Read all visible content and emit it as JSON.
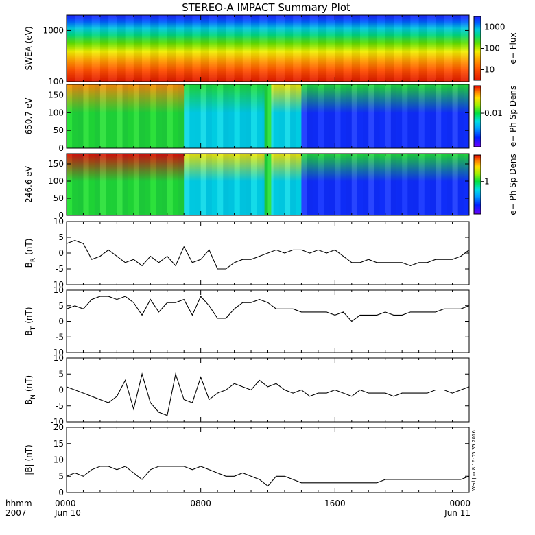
{
  "title": "STEREO-A IMPACT Summary Plot",
  "stamp": "Wed Jun  8 16:05:35 2016",
  "time_axis": {
    "prefix_top": "hhmm",
    "prefix_bottom": "2007",
    "range_hours": [
      0,
      24
    ],
    "ticks": [
      {
        "hour": 0,
        "top": "0000",
        "bottom": "Jun 10"
      },
      {
        "hour": 8,
        "top": "0800",
        "bottom": ""
      },
      {
        "hour": 16,
        "top": "1600",
        "bottom": ""
      },
      {
        "hour": 24,
        "top": "0000",
        "bottom": "Jun 11"
      }
    ]
  },
  "chart_data": [
    {
      "type": "heatmap",
      "ylabel": "SWEA (eV)",
      "ylim": [
        100,
        2000
      ],
      "log_y": true,
      "yticks": [
        "100",
        "1000"
      ],
      "colorbar": {
        "label": "e− Flux",
        "ticks": [
          "10",
          "100",
          "1000"
        ],
        "scale": "log"
      },
      "note": "flux decreases with energy; red below ~300 eV, blue above ~1500 eV"
    },
    {
      "type": "heatmap",
      "ylabel": "650.7 eV",
      "ylim": [
        0,
        180
      ],
      "yticks": [
        "0",
        "50",
        "100",
        "150"
      ],
      "colorbar": {
        "label": "e− Ph Sp Dens",
        "ticks": [
          "0.01"
        ],
        "scale": "log"
      },
      "bands": [
        {
          "t0": 0,
          "t1": 7.0,
          "low": "green",
          "high": "orange"
        },
        {
          "t0": 7.0,
          "t1": 11.8,
          "low": "cyan",
          "high": "green"
        },
        {
          "t0": 11.8,
          "t1": 12.2,
          "low": "green",
          "high": "green"
        },
        {
          "t0": 12.2,
          "t1": 14.0,
          "low": "cyan",
          "high": "yellow"
        },
        {
          "t0": 14.0,
          "t1": 24.0,
          "low": "blue",
          "high": "green"
        }
      ]
    },
    {
      "type": "heatmap",
      "ylabel": "246.6 eV",
      "ylim": [
        0,
        180
      ],
      "yticks": [
        "0",
        "50",
        "100",
        "150"
      ],
      "colorbar": {
        "label": "e− Ph Sp Dens",
        "ticks": [
          "1"
        ],
        "scale": "log"
      },
      "bands": [
        {
          "t0": 0,
          "t1": 7.0,
          "low": "green",
          "high": "red"
        },
        {
          "t0": 7.0,
          "t1": 11.8,
          "low": "cyan",
          "high": "yellow"
        },
        {
          "t0": 11.8,
          "t1": 12.2,
          "low": "green",
          "high": "green"
        },
        {
          "t0": 12.2,
          "t1": 14.0,
          "low": "cyan",
          "high": "yellow"
        },
        {
          "t0": 14.0,
          "t1": 24.0,
          "low": "blue",
          "high": "green"
        }
      ]
    },
    {
      "type": "line",
      "ylabel": "B_R (nT)",
      "ylabel_main": "B",
      "ylabel_sub": "R",
      "ylabel_unit": "(nT)",
      "ylim": [
        -10,
        10
      ],
      "yticks": [
        "-10",
        "-5",
        "0",
        "5",
        "10"
      ],
      "x": [
        0,
        0.5,
        1,
        1.5,
        2,
        2.5,
        3,
        3.5,
        4,
        4.5,
        5,
        5.5,
        6,
        6.5,
        7,
        7.5,
        8,
        8.5,
        9,
        9.5,
        10,
        10.5,
        11,
        11.5,
        12,
        12.5,
        13,
        13.5,
        14,
        14.5,
        15,
        15.5,
        16,
        16.5,
        17,
        17.5,
        18,
        18.5,
        19,
        19.5,
        20,
        20.5,
        21,
        21.5,
        22,
        22.5,
        23,
        23.5,
        24
      ],
      "y": [
        3,
        4,
        3,
        -2,
        -1,
        1,
        -1,
        -3,
        -2,
        -4,
        -1,
        -3,
        -1,
        -4,
        2,
        -3,
        -2,
        1,
        -5,
        -5,
        -3,
        -2,
        -2,
        -1,
        0,
        1,
        0,
        1,
        1,
        0,
        1,
        0,
        1,
        -1,
        -3,
        -3,
        -2,
        -3,
        -3,
        -3,
        -3,
        -4,
        -3,
        -3,
        -2,
        -2,
        -2,
        -1,
        1
      ]
    },
    {
      "type": "line",
      "ylabel": "B_T (nT)",
      "ylabel_main": "B",
      "ylabel_sub": "T",
      "ylabel_unit": "(nT)",
      "ylim": [
        -10,
        10
      ],
      "yticks": [
        "-10",
        "-5",
        "0",
        "5",
        "10"
      ],
      "x": [
        0,
        0.5,
        1,
        1.5,
        2,
        2.5,
        3,
        3.5,
        4,
        4.5,
        5,
        5.5,
        6,
        6.5,
        7,
        7.5,
        8,
        8.5,
        9,
        9.5,
        10,
        10.5,
        11,
        11.5,
        12,
        12.5,
        13,
        13.5,
        14,
        14.5,
        15,
        15.5,
        16,
        16.5,
        17,
        17.5,
        18,
        18.5,
        19,
        19.5,
        20,
        20.5,
        21,
        21.5,
        22,
        22.5,
        23,
        23.5,
        24
      ],
      "y": [
        4,
        5,
        4,
        7,
        8,
        8,
        7,
        8,
        6,
        2,
        7,
        3,
        6,
        6,
        7,
        2,
        8,
        5,
        1,
        1,
        4,
        6,
        6,
        7,
        6,
        4,
        4,
        4,
        3,
        3,
        3,
        3,
        2,
        3,
        0,
        2,
        2,
        2,
        3,
        2,
        2,
        3,
        3,
        3,
        3,
        4,
        4,
        4,
        5
      ]
    },
    {
      "type": "line",
      "ylabel": "B_N (nT)",
      "ylabel_main": "B",
      "ylabel_sub": "N",
      "ylabel_unit": "(nT)",
      "ylim": [
        -10,
        10
      ],
      "yticks": [
        "-10",
        "-5",
        "0",
        "5",
        "10"
      ],
      "x": [
        0,
        0.5,
        1,
        1.5,
        2,
        2.5,
        3,
        3.5,
        4,
        4.5,
        5,
        5.5,
        6,
        6.5,
        7,
        7.5,
        8,
        8.5,
        9,
        9.5,
        10,
        10.5,
        11,
        11.5,
        12,
        12.5,
        13,
        13.5,
        14,
        14.5,
        15,
        15.5,
        16,
        16.5,
        17,
        17.5,
        18,
        18.5,
        19,
        19.5,
        20,
        20.5,
        21,
        21.5,
        22,
        22.5,
        23,
        23.5,
        24
      ],
      "y": [
        1,
        0,
        -1,
        -2,
        -3,
        -4,
        -2,
        3,
        -6,
        5,
        -4,
        -7,
        -8,
        5,
        -3,
        -4,
        4,
        -3,
        -1,
        0,
        2,
        1,
        0,
        3,
        1,
        2,
        0,
        -1,
        0,
        -2,
        -1,
        -1,
        0,
        -1,
        -2,
        0,
        -1,
        -1,
        -1,
        -2,
        -1,
        -1,
        -1,
        -1,
        0,
        0,
        -1,
        0,
        1
      ]
    },
    {
      "type": "line",
      "ylabel": "|B| (nT)",
      "ylabel_main": "|B|",
      "ylabel_sub": "",
      "ylabel_unit": "(nT)",
      "ylim": [
        0,
        20
      ],
      "yticks": [
        "0",
        "5",
        "10",
        "15",
        "20"
      ],
      "x": [
        0,
        0.5,
        1,
        1.5,
        2,
        2.5,
        3,
        3.5,
        4,
        4.5,
        5,
        5.5,
        6,
        6.5,
        7,
        7.5,
        8,
        8.5,
        9,
        9.5,
        10,
        10.5,
        11,
        11.5,
        12,
        12.5,
        13,
        13.5,
        14,
        14.5,
        15,
        15.5,
        16,
        16.5,
        17,
        17.5,
        18,
        18.5,
        19,
        19.5,
        20,
        20.5,
        21,
        21.5,
        22,
        22.5,
        23,
        23.5,
        24
      ],
      "y": [
        5,
        6,
        5,
        7,
        8,
        8,
        7,
        8,
        6,
        4,
        7,
        8,
        8,
        8,
        8,
        7,
        8,
        7,
        6,
        5,
        5,
        6,
        5,
        4,
        2,
        5,
        5,
        4,
        3,
        3,
        3,
        3,
        3,
        3,
        3,
        3,
        3,
        3,
        4,
        4,
        4,
        4,
        4,
        4,
        4,
        4,
        4,
        4,
        5
      ]
    }
  ]
}
